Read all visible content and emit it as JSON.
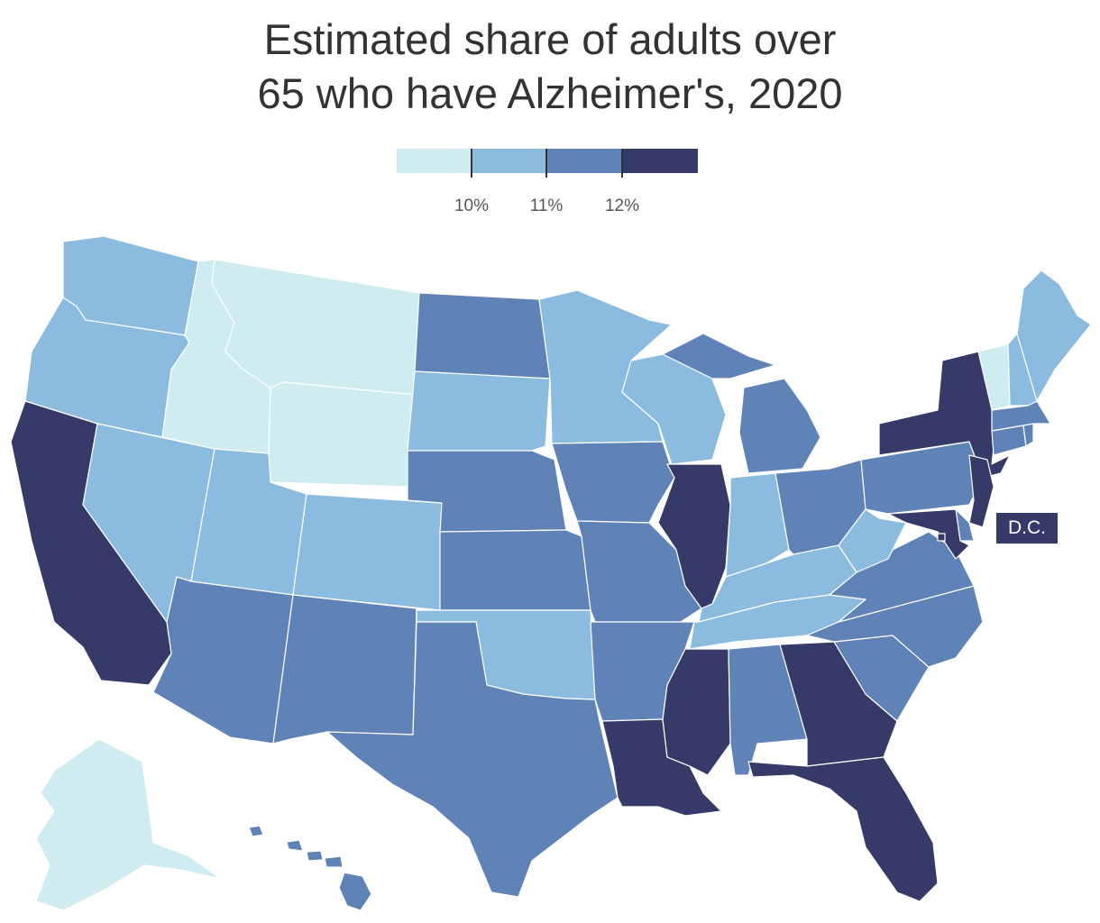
{
  "title_line1": "Estimated share of adults over",
  "title_line2": "65 who have Alzheimer's, 2020",
  "legend": {
    "bins": [
      {
        "color": "#cfecf1"
      },
      {
        "color": "#8bbcdf"
      },
      {
        "color": "#5f82b7"
      },
      {
        "color": "#363a69"
      }
    ],
    "ticks": [
      "10%",
      "11%",
      "12%"
    ]
  },
  "dc_label": "D.C.",
  "colors": {
    "bin1": "#cfecf1",
    "bin2": "#8bbcdf",
    "bin3": "#5f82b7",
    "bin4": "#363a69"
  },
  "state_bins": {
    "WA": 2,
    "OR": 2,
    "CA": 4,
    "NV": 2,
    "ID": 1,
    "MT": 1,
    "WY": 1,
    "UT": 2,
    "CO": 2,
    "AZ": 3,
    "NM": 3,
    "ND": 3,
    "SD": 2,
    "NE": 3,
    "KS": 3,
    "OK": 2,
    "TX": 3,
    "MN": 2,
    "IA": 3,
    "MO": 3,
    "AR": 3,
    "LA": 4,
    "WI": 2,
    "IL": 4,
    "MI": 3,
    "IN": 2,
    "OH": 3,
    "KY": 2,
    "TN": 2,
    "MS": 4,
    "AL": 3,
    "GA": 4,
    "FL": 4,
    "SC": 3,
    "NC": 3,
    "VA": 3,
    "WV": 2,
    "PA": 3,
    "NY": 4,
    "NJ": 4,
    "DE": 3,
    "MD": 4,
    "DC": 4,
    "CT": 3,
    "RI": 3,
    "MA": 3,
    "VT": 1,
    "NH": 2,
    "ME": 2,
    "AK": 1,
    "HI": 3
  }
}
